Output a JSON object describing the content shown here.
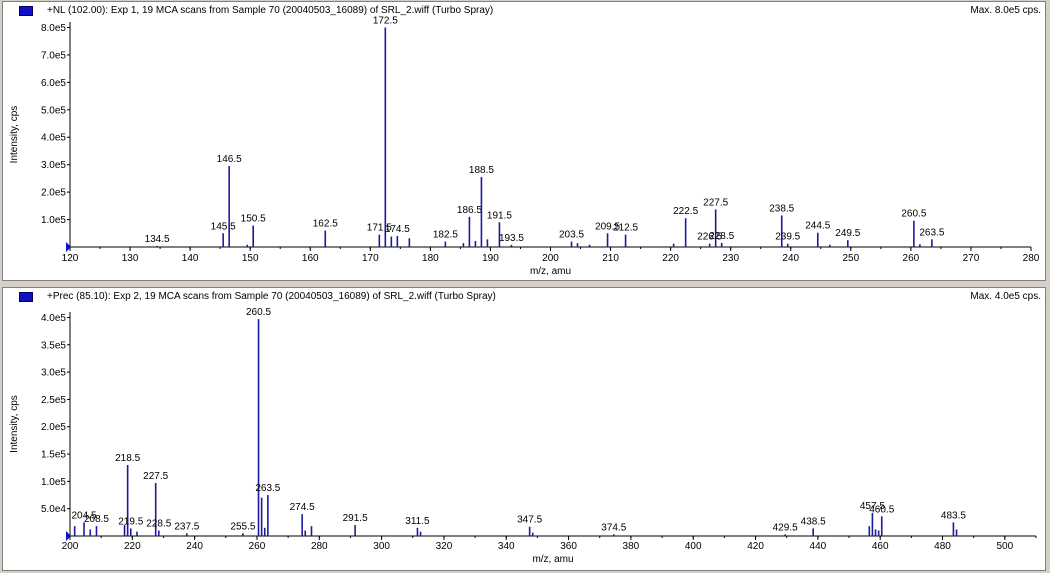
{
  "chart_data": [
    {
      "type": "bar",
      "title": "+NL (102.00): Exp 1, 19 MCA scans from Sample 70 (20040503_16089) of SRL_2.wiff (Turbo Spray)",
      "max_label": "Max. 8.0e5 cps.",
      "xlabel": "m/z, amu",
      "ylabel": "Intensity, cps",
      "xlim": [
        120,
        280
      ],
      "ylim": [
        0,
        820000
      ],
      "xticks": [
        {
          "v": 120,
          "label": "120"
        },
        {
          "v": 130,
          "label": "130"
        },
        {
          "v": 140,
          "label": "140"
        },
        {
          "v": 150,
          "label": "150"
        },
        {
          "v": 160,
          "label": "160"
        },
        {
          "v": 170,
          "label": "170"
        },
        {
          "v": 180,
          "label": "180"
        },
        {
          "v": 190,
          "label": "190"
        },
        {
          "v": 200,
          "label": "200"
        },
        {
          "v": 210,
          "label": "210"
        },
        {
          "v": 220,
          "label": "220"
        },
        {
          "v": 230,
          "label": "230"
        },
        {
          "v": 240,
          "label": "240"
        },
        {
          "v": 250,
          "label": "250"
        },
        {
          "v": 260,
          "label": "260"
        },
        {
          "v": 270,
          "label": "270"
        },
        {
          "v": 280,
          "label": "280"
        }
      ],
      "yticks": [
        {
          "v": 100000,
          "label": "1.0e5"
        },
        {
          "v": 200000,
          "label": "2.0e5"
        },
        {
          "v": 300000,
          "label": "3.0e5"
        },
        {
          "v": 400000,
          "label": "4.0e5"
        },
        {
          "v": 500000,
          "label": "5.0e5"
        },
        {
          "v": 600000,
          "label": "6.0e5"
        },
        {
          "v": 700000,
          "label": "7.0e5"
        },
        {
          "v": 800000,
          "label": "8.0e5"
        }
      ],
      "peaks": [
        {
          "x": 134.5,
          "y": 4000,
          "label": "134.5"
        },
        {
          "x": 145.5,
          "y": 50000,
          "label": "145.5"
        },
        {
          "x": 146.5,
          "y": 295000,
          "label": "146.5"
        },
        {
          "x": 149.5,
          "y": 8000
        },
        {
          "x": 150.5,
          "y": 78000,
          "label": "150.5"
        },
        {
          "x": 162.5,
          "y": 60000,
          "label": "162.5"
        },
        {
          "x": 171.5,
          "y": 45000,
          "label": "171.5"
        },
        {
          "x": 172.5,
          "y": 800000,
          "label": "172.5"
        },
        {
          "x": 173.5,
          "y": 38000
        },
        {
          "x": 174.5,
          "y": 40000,
          "label": "174.5"
        },
        {
          "x": 176.5,
          "y": 32000
        },
        {
          "x": 182.5,
          "y": 20000,
          "label": "182.5"
        },
        {
          "x": 185.5,
          "y": 14000
        },
        {
          "x": 186.5,
          "y": 110000,
          "label": "186.5"
        },
        {
          "x": 187.5,
          "y": 22000
        },
        {
          "x": 188.5,
          "y": 255000,
          "label": "188.5"
        },
        {
          "x": 189.5,
          "y": 28000
        },
        {
          "x": 191.5,
          "y": 90000,
          "label": "191.5"
        },
        {
          "x": 193.5,
          "y": 8000,
          "label": "193.5"
        },
        {
          "x": 203.5,
          "y": 20000,
          "label": "203.5"
        },
        {
          "x": 204.5,
          "y": 14000
        },
        {
          "x": 206.5,
          "y": 8000
        },
        {
          "x": 209.5,
          "y": 50000,
          "label": "209.5"
        },
        {
          "x": 212.5,
          "y": 45000,
          "label": "212.5"
        },
        {
          "x": 220.5,
          "y": 12000
        },
        {
          "x": 222.5,
          "y": 105000,
          "label": "222.5"
        },
        {
          "x": 226.5,
          "y": 12000,
          "label": "226.5"
        },
        {
          "x": 227.5,
          "y": 137000,
          "label": "227.5"
        },
        {
          "x": 228.5,
          "y": 15000,
          "label": "228.5"
        },
        {
          "x": 238.5,
          "y": 115000,
          "label": "238.5"
        },
        {
          "x": 239.5,
          "y": 12000,
          "label": "239.5"
        },
        {
          "x": 244.5,
          "y": 52000,
          "label": "244.5"
        },
        {
          "x": 246.5,
          "y": 8000
        },
        {
          "x": 249.5,
          "y": 25000,
          "label": "249.5"
        },
        {
          "x": 260.5,
          "y": 96000,
          "label": "260.5"
        },
        {
          "x": 261.5,
          "y": 10000
        },
        {
          "x": 263.5,
          "y": 28000,
          "label": "263.5"
        }
      ]
    },
    {
      "type": "bar",
      "title": "+Prec (85.10): Exp 2, 19 MCA scans from Sample 70 (20040503_16089) of SRL_2.wiff (Turbo Spray)",
      "max_label": "Max. 4.0e5 cps.",
      "xlabel": "m/z, amu",
      "ylabel": "Intensity, cps",
      "xlim": [
        200,
        510
      ],
      "ylim": [
        0,
        410000
      ],
      "xticks": [
        {
          "v": 200,
          "label": "200"
        },
        {
          "v": 220,
          "label": "220"
        },
        {
          "v": 240,
          "label": "240"
        },
        {
          "v": 260,
          "label": "260"
        },
        {
          "v": 280,
          "label": "280"
        },
        {
          "v": 300,
          "label": "300"
        },
        {
          "v": 320,
          "label": "320"
        },
        {
          "v": 340,
          "label": "340"
        },
        {
          "v": 360,
          "label": "360"
        },
        {
          "v": 380,
          "label": "380"
        },
        {
          "v": 400,
          "label": "400"
        },
        {
          "v": 420,
          "label": "420"
        },
        {
          "v": 440,
          "label": "440"
        },
        {
          "v": 460,
          "label": "460"
        },
        {
          "v": 480,
          "label": "480"
        },
        {
          "v": 500,
          "label": "500"
        }
      ],
      "yticks": [
        {
          "v": 50000,
          "label": "5.0e4"
        },
        {
          "v": 100000,
          "label": "1.0e5"
        },
        {
          "v": 150000,
          "label": "1.5e5"
        },
        {
          "v": 200000,
          "label": "2.0e5"
        },
        {
          "v": 250000,
          "label": "2.5e5"
        },
        {
          "v": 300000,
          "label": "3.0e5"
        },
        {
          "v": 350000,
          "label": "3.5e5"
        },
        {
          "v": 400000,
          "label": "4.0e5"
        }
      ],
      "peaks": [
        {
          "x": 201.5,
          "y": 18000
        },
        {
          "x": 204.5,
          "y": 25000,
          "label": "204.5"
        },
        {
          "x": 206.5,
          "y": 12000
        },
        {
          "x": 208.5,
          "y": 18000,
          "label": "208.5"
        },
        {
          "x": 217.5,
          "y": 20000
        },
        {
          "x": 218.5,
          "y": 130000,
          "label": "218.5"
        },
        {
          "x": 219.5,
          "y": 14000,
          "label": "219.5"
        },
        {
          "x": 221.5,
          "y": 8000
        },
        {
          "x": 227.5,
          "y": 97000,
          "label": "227.5"
        },
        {
          "x": 228.5,
          "y": 10000,
          "label": "228.5"
        },
        {
          "x": 237.5,
          "y": 5000,
          "label": "237.5"
        },
        {
          "x": 255.5,
          "y": 5000,
          "label": "255.5"
        },
        {
          "x": 260.5,
          "y": 397000,
          "label": "260.5"
        },
        {
          "x": 261.5,
          "y": 70000
        },
        {
          "x": 262.5,
          "y": 15000
        },
        {
          "x": 263.5,
          "y": 75000,
          "label": "263.5"
        },
        {
          "x": 274.5,
          "y": 40000,
          "label": "274.5"
        },
        {
          "x": 275.5,
          "y": 10000
        },
        {
          "x": 277.5,
          "y": 18000
        },
        {
          "x": 291.5,
          "y": 20000,
          "label": "291.5"
        },
        {
          "x": 311.5,
          "y": 15000,
          "label": "311.5"
        },
        {
          "x": 312.5,
          "y": 8000
        },
        {
          "x": 347.5,
          "y": 17000,
          "label": "347.5"
        },
        {
          "x": 348.5,
          "y": 6000
        },
        {
          "x": 374.5,
          "y": 3000,
          "label": "374.5"
        },
        {
          "x": 429.5,
          "y": 3000,
          "label": "429.5"
        },
        {
          "x": 438.5,
          "y": 14000,
          "label": "438.5"
        },
        {
          "x": 456.5,
          "y": 18000
        },
        {
          "x": 457.5,
          "y": 42000,
          "label": "457.5"
        },
        {
          "x": 458.5,
          "y": 12000
        },
        {
          "x": 459.5,
          "y": 10000
        },
        {
          "x": 460.5,
          "y": 36000,
          "label": "460.5"
        },
        {
          "x": 483.5,
          "y": 25000,
          "label": "483.5"
        },
        {
          "x": 484.5,
          "y": 12000
        }
      ]
    }
  ]
}
